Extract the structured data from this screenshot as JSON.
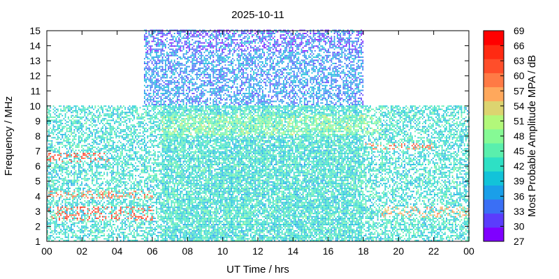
{
  "chart_data": {
    "type": "heatmap",
    "title": "2025-10-11",
    "xlabel": "UT Time / hrs",
    "ylabel": "Frequency / MHz",
    "colorbar_label": "Most Probable Amplitude MPA / dB",
    "xlim": [
      0,
      24
    ],
    "ylim": [
      1,
      15
    ],
    "x_ticks": [
      "00",
      "02",
      "04",
      "06",
      "08",
      "10",
      "12",
      "14",
      "16",
      "18",
      "20",
      "22",
      "00"
    ],
    "y_ticks": [
      "1",
      "2",
      "3",
      "4",
      "5",
      "6",
      "7",
      "8",
      "9",
      "10",
      "11",
      "12",
      "13",
      "14",
      "15"
    ],
    "colorbar_ticks": [
      "27",
      "30",
      "33",
      "36",
      "39",
      "42",
      "45",
      "48",
      "51",
      "54",
      "57",
      "60",
      "63",
      "66",
      "69"
    ],
    "colorbar_range": [
      27,
      69
    ],
    "colorbar_colors": [
      "#7f00ff",
      "#5b3cfc",
      "#3a6ff5",
      "#1a9fe9",
      "#12c3d9",
      "#2ee0c5",
      "#5aefad",
      "#86fa95",
      "#b2f87a",
      "#dcd470",
      "#ffa85c",
      "#ff7a45",
      "#ff4e2a",
      "#ff2a12",
      "#ff0000"
    ],
    "regions": [
      {
        "description": "",
        "x": [
          0,
          24
        ],
        "y": [
          1,
          10
        ],
        "typical_db": 42
      },
      {
        "description": "",
        "x": [
          5.5,
          18
        ],
        "y": [
          10,
          15
        ],
        "typical_db": 36
      }
    ],
    "bands": [
      {
        "x": [
          0,
          6
        ],
        "y": [
          2.3,
          3.3
        ],
        "db": 63
      },
      {
        "x": [
          0,
          6
        ],
        "y": [
          3.8,
          4.3
        ],
        "db": 60
      },
      {
        "x": [
          0,
          3.5
        ],
        "y": [
          6.2,
          6.8
        ],
        "db": 63
      },
      {
        "x": [
          18,
          22
        ],
        "y": [
          7,
          7.5
        ],
        "db": 60
      },
      {
        "x": [
          19,
          24
        ],
        "y": [
          2.5,
          3.3
        ],
        "db": 57
      }
    ]
  }
}
